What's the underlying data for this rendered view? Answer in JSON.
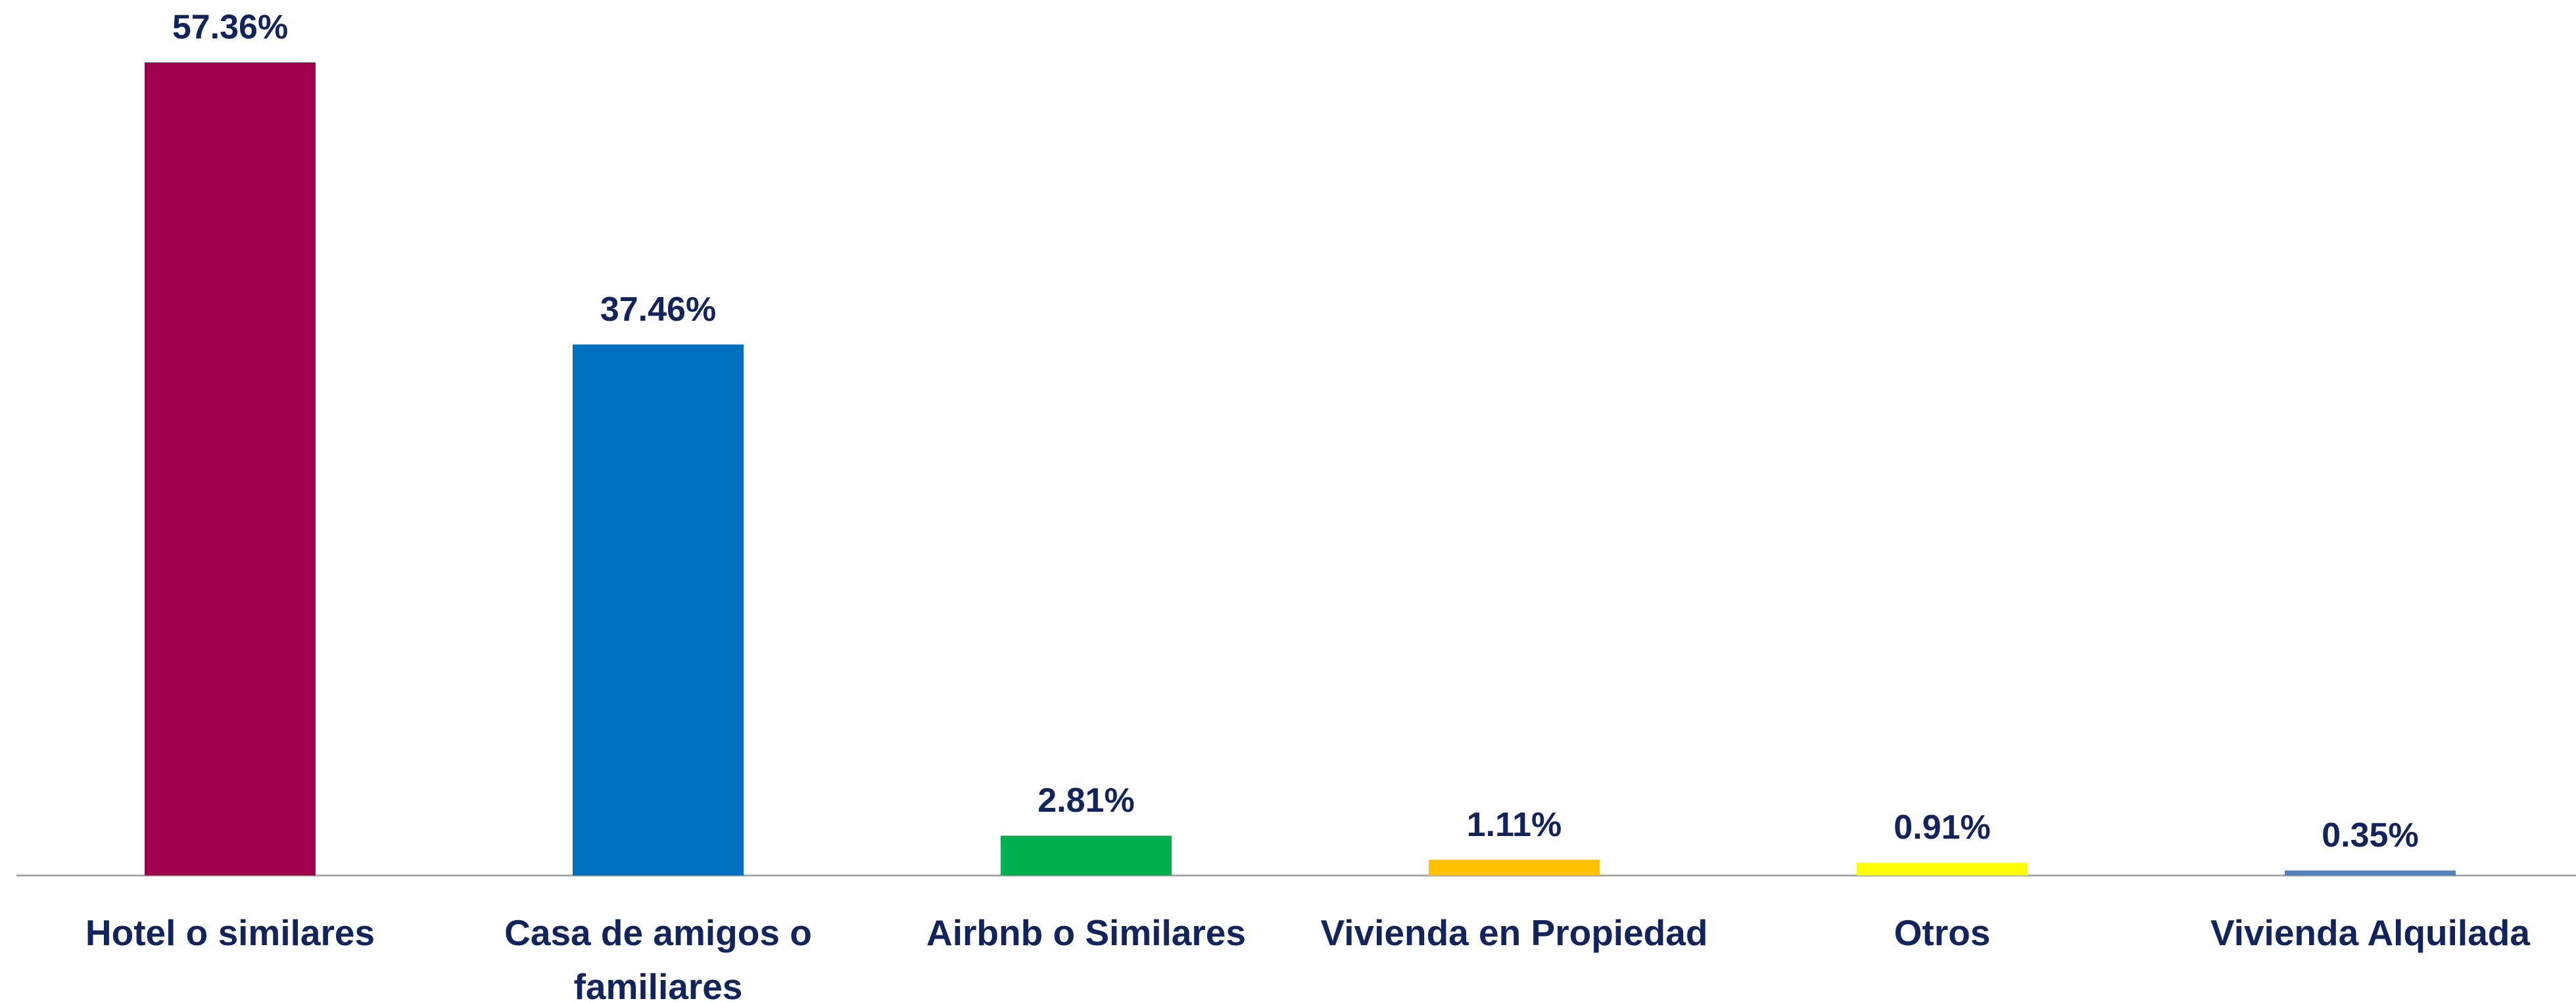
{
  "chart_data": {
    "type": "bar",
    "categories": [
      "Hotel o similares",
      "Casa de amigos o familiares",
      "Airbnb o Similares",
      "Vivienda en Propiedad",
      "Otros",
      "Vivienda Alquilada"
    ],
    "values": [
      57.36,
      37.46,
      2.81,
      1.11,
      0.91,
      0.35
    ],
    "value_labels": [
      "57.36%",
      "37.46%",
      "2.81%",
      "1.11%",
      "0.91%",
      "0.35%"
    ],
    "colors": [
      "#a0004e",
      "#0070c0",
      "#00b050",
      "#ffc000",
      "#ffff00",
      "#4f81bd"
    ]
  }
}
